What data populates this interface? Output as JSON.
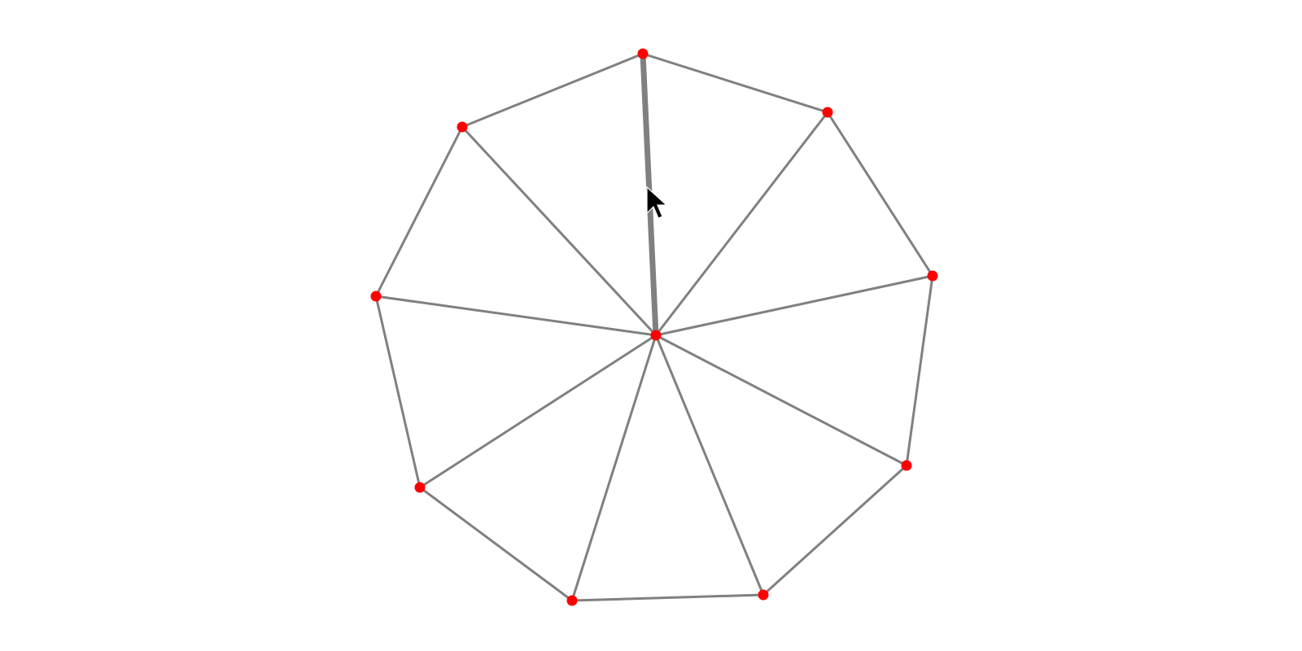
{
  "graph": {
    "edge_color": "#808080",
    "node_color": "#ff0000",
    "nodes": [
      {
        "id": "hub"
      },
      {
        "id": "n1"
      },
      {
        "id": "n2"
      },
      {
        "id": "n3"
      },
      {
        "id": "n4"
      },
      {
        "id": "n5"
      },
      {
        "id": "n6"
      },
      {
        "id": "n7"
      },
      {
        "id": "n8"
      },
      {
        "id": "n9"
      }
    ],
    "edges": [
      {
        "from": "n1",
        "to": "n2"
      },
      {
        "from": "n2",
        "to": "n3"
      },
      {
        "from": "n3",
        "to": "n4"
      },
      {
        "from": "n4",
        "to": "n5"
      },
      {
        "from": "n5",
        "to": "n6"
      },
      {
        "from": "n6",
        "to": "n7"
      },
      {
        "from": "n7",
        "to": "n8"
      },
      {
        "from": "n8",
        "to": "n9"
      },
      {
        "from": "n9",
        "to": "n1"
      },
      {
        "from": "hub",
        "to": "n1",
        "highlighted": true
      },
      {
        "from": "hub",
        "to": "n2"
      },
      {
        "from": "hub",
        "to": "n3"
      },
      {
        "from": "hub",
        "to": "n4"
      },
      {
        "from": "hub",
        "to": "n5"
      },
      {
        "from": "hub",
        "to": "n6"
      },
      {
        "from": "hub",
        "to": "n7"
      },
      {
        "from": "hub",
        "to": "n8"
      },
      {
        "from": "hub",
        "to": "n9"
      }
    ]
  },
  "pointer": {
    "icon": "mouse-pointer-icon"
  }
}
